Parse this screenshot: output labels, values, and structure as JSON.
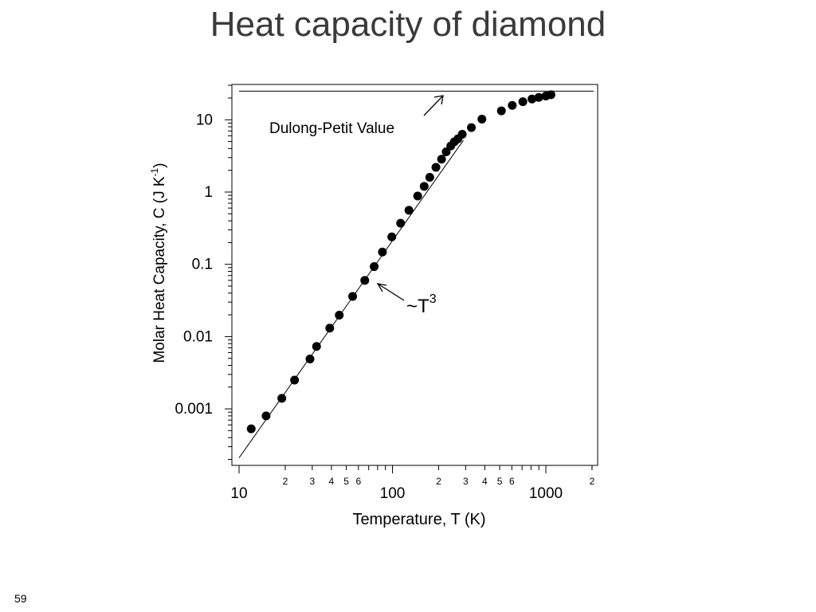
{
  "slide": {
    "title": "Heat capacity of diamond",
    "page_number": "59"
  },
  "chart_data": {
    "type": "scatter",
    "xscale": "log",
    "yscale": "log",
    "xlabel": "Temperature, T (K)",
    "ylabel_main": "Molar Heat Capacity, C  (J K",
    "ylabel_sup": "-1",
    "ylabel_close": ")",
    "xlim": [
      10,
      2000
    ],
    "ylim": [
      0.0002,
      30
    ],
    "x_major_ticks": [
      {
        "value": 10,
        "label": "10"
      },
      {
        "value": 100,
        "label": "100"
      },
      {
        "value": 1000,
        "label": "1000"
      }
    ],
    "x_minor_labels": [
      {
        "value": 20,
        "label": "2"
      },
      {
        "value": 30,
        "label": "3"
      },
      {
        "value": 40,
        "label": "4"
      },
      {
        "value": 50,
        "label": "5"
      },
      {
        "value": 60,
        "label": "6"
      },
      {
        "value": 200,
        "label": "2"
      },
      {
        "value": 300,
        "label": "3"
      },
      {
        "value": 400,
        "label": "4"
      },
      {
        "value": 500,
        "label": "5"
      },
      {
        "value": 600,
        "label": "6"
      },
      {
        "value": 2000,
        "label": "2"
      }
    ],
    "y_major_ticks": [
      {
        "value": 0.001,
        "label": "0.001"
      },
      {
        "value": 0.01,
        "label": "0.01"
      },
      {
        "value": 0.1,
        "label": "0.1"
      },
      {
        "value": 1,
        "label": "1"
      },
      {
        "value": 10,
        "label": "10"
      }
    ],
    "series": [
      {
        "points": [
          [
            12,
            0.00053
          ],
          [
            15,
            0.0008
          ],
          [
            19,
            0.0014
          ],
          [
            23,
            0.0025
          ],
          [
            29,
            0.0049
          ],
          [
            32,
            0.0073
          ],
          [
            39,
            0.0131
          ],
          [
            45,
            0.0198
          ],
          [
            55,
            0.036
          ],
          [
            66,
            0.06
          ],
          [
            76,
            0.093
          ],
          [
            86,
            0.148
          ],
          [
            99,
            0.24
          ],
          [
            113,
            0.37
          ],
          [
            128,
            0.56
          ],
          [
            146,
            0.88
          ],
          [
            161,
            1.2
          ],
          [
            175,
            1.6
          ],
          [
            192,
            2.2
          ],
          [
            209,
            2.85
          ],
          [
            224,
            3.6
          ],
          [
            240,
            4.35
          ],
          [
            253,
            4.95
          ],
          [
            267,
            5.45
          ],
          [
            285,
            6.3
          ],
          [
            327,
            7.8
          ],
          [
            383,
            10.2
          ],
          [
            513,
            13.3
          ],
          [
            604,
            15.8
          ],
          [
            708,
            17.8
          ],
          [
            812,
            19.4
          ],
          [
            899,
            20.4
          ],
          [
            1000,
            21.3
          ],
          [
            1080,
            22.2
          ]
        ]
      }
    ],
    "reference_lines": [
      {
        "name": "Dulong-Petit Value",
        "type": "horizontal",
        "y": 24.9
      },
      {
        "name": "~T3",
        "type": "power_law",
        "x": [
          10,
          290
        ],
        "y": [
          0.00021,
          5.2
        ]
      }
    ],
    "annotations": [
      {
        "text": "Dulong-Petit Value"
      },
      {
        "text": "~T",
        "sup": "3"
      }
    ],
    "grid": false
  }
}
